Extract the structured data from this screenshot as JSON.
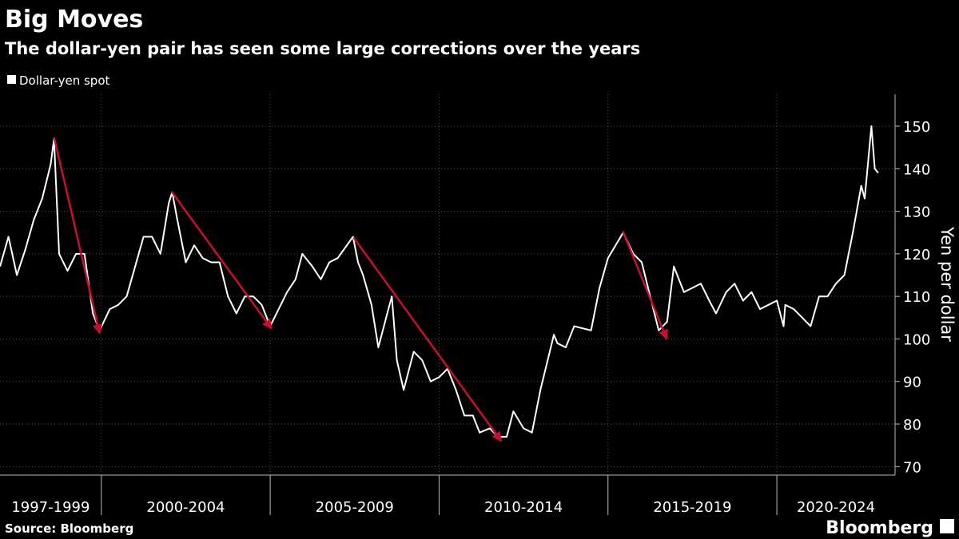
{
  "chart_data": {
    "type": "line",
    "title": "Big Moves",
    "subtitle": "The dollar-yen pair has seen some large corrections over the years",
    "y_label": "Yen per dollar",
    "source": "Source: Bloomberg",
    "brand": "Bloomberg",
    "xlim": [
      1997,
      2023.5
    ],
    "ylim": [
      68,
      157.5
    ],
    "yticks": [
      70,
      80,
      90,
      100,
      110,
      120,
      130,
      140,
      150
    ],
    "x_periods": [
      {
        "value": 1997,
        "label": "1997-1999"
      },
      {
        "value": 2000,
        "label": "2000-2004"
      },
      {
        "value": 2005,
        "label": "2005-2009"
      },
      {
        "value": 2010,
        "label": "2010-2014"
      },
      {
        "value": 2015,
        "label": "2015-2019"
      },
      {
        "value": 2020,
        "label": "2020-2024"
      }
    ],
    "grid": true,
    "x": [
      1997.0,
      1997.25,
      1997.5,
      1997.75,
      1998.0,
      1998.25,
      1998.5,
      1998.6,
      1998.75,
      1999.0,
      1999.25,
      1999.5,
      1999.75,
      1999.95,
      2000.25,
      2000.5,
      2000.75,
      2001.0,
      2001.25,
      2001.5,
      2001.75,
      2002.0,
      2002.1,
      2002.25,
      2002.5,
      2002.75,
      2003.0,
      2003.25,
      2003.5,
      2003.75,
      2004.0,
      2004.25,
      2004.5,
      2004.75,
      2005.0,
      2005.25,
      2005.5,
      2005.75,
      2005.95,
      2006.25,
      2006.5,
      2006.75,
      2007.0,
      2007.45,
      2007.6,
      2007.75,
      2008.0,
      2008.2,
      2008.5,
      2008.6,
      2008.75,
      2008.95,
      2009.25,
      2009.5,
      2009.75,
      2010.0,
      2010.25,
      2010.5,
      2010.75,
      2011.0,
      2011.2,
      2011.5,
      2011.75,
      2012.0,
      2012.2,
      2012.5,
      2012.75,
      2013.0,
      2013.4,
      2013.5,
      2013.75,
      2014.0,
      2014.5,
      2014.75,
      2015.0,
      2015.45,
      2015.75,
      2016.0,
      2016.25,
      2016.5,
      2016.75,
      2016.95,
      2017.25,
      2017.5,
      2017.75,
      2018.0,
      2018.2,
      2018.5,
      2018.75,
      2019.0,
      2019.25,
      2019.5,
      2019.75,
      2020.0,
      2020.2,
      2020.25,
      2020.5,
      2020.75,
      2021.0,
      2021.25,
      2021.5,
      2021.75,
      2022.0,
      2022.25,
      2022.5,
      2022.6,
      2022.8,
      2022.9,
      2023.0
    ],
    "series": [
      {
        "name": "Dollar-yen spot",
        "color": "#ffffff",
        "values": [
          117,
          124,
          115,
          121,
          128,
          133,
          141,
          147,
          120,
          116,
          120,
          120,
          106,
          102,
          107,
          108,
          110,
          117,
          124,
          124,
          120,
          132,
          134.5,
          128,
          118,
          122,
          119,
          118,
          118,
          110,
          106,
          110,
          110,
          108,
          103,
          107,
          111,
          114,
          120,
          117,
          114,
          118,
          119,
          124,
          118,
          115,
          108,
          98,
          107,
          110,
          95,
          88,
          97,
          95,
          90,
          91,
          93,
          88,
          82,
          82,
          78,
          79,
          77,
          77,
          83,
          79,
          78,
          88,
          101,
          99,
          98,
          103,
          102,
          112,
          119,
          125,
          120,
          118,
          110,
          102,
          104,
          117,
          111,
          112,
          113,
          109,
          106,
          111,
          113,
          109,
          111,
          107,
          108,
          109,
          103,
          108,
          107,
          105,
          103,
          110,
          110,
          113,
          115,
          125,
          136,
          133,
          150,
          140,
          139
        ]
      }
    ],
    "arrow_color": "#c8102e",
    "arrows": [
      {
        "x": [
          1998.6,
          1999.95
        ],
        "y": [
          147.4,
          101.3
        ]
      },
      {
        "x": [
          2002.08,
          2005.04
        ],
        "y": [
          134.6,
          102.4
        ]
      },
      {
        "x": [
          2007.47,
          2011.84
        ],
        "y": [
          123.8,
          76
        ]
      },
      {
        "x": [
          2015.44,
          2016.74
        ],
        "y": [
          125.3,
          100
        ]
      }
    ]
  }
}
